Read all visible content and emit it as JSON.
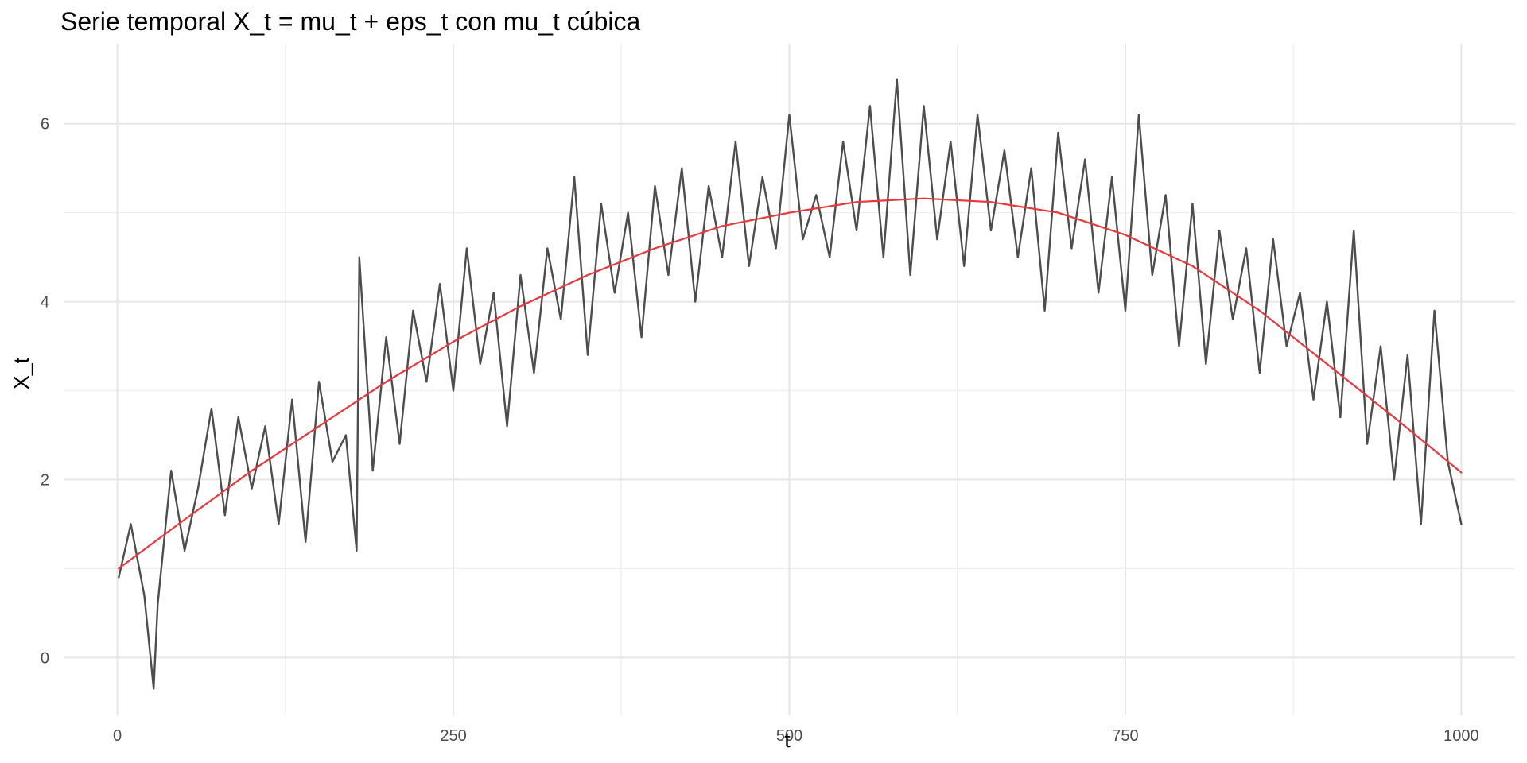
{
  "chart_data": {
    "type": "line",
    "title": "Serie temporal X_t = mu_t + eps_t con mu_t cúbica",
    "xlabel": "t",
    "ylabel": "X_t",
    "xlim": [
      -40,
      1040
    ],
    "ylim": [
      -0.65,
      6.9
    ],
    "x_ticks": [
      0,
      250,
      500,
      750,
      1000
    ],
    "x_tick_labels": [
      "0",
      "250",
      "500",
      "750",
      "1000"
    ],
    "y_ticks": [
      0,
      2,
      4,
      6
    ],
    "y_tick_labels": [
      "0",
      "2",
      "4",
      "6"
    ],
    "grid": true,
    "legend": "none",
    "colors": {
      "observed": "#4d4d4d",
      "trend": "#e8383d",
      "grid": "#e6e6e6"
    },
    "series": [
      {
        "role": "observed",
        "description": "observed series X_t, t = 1..1000 (sampled every 10 steps)",
        "x": [
          1,
          10,
          20,
          27,
          30,
          40,
          50,
          60,
          70,
          80,
          90,
          100,
          110,
          120,
          130,
          140,
          150,
          160,
          170,
          178,
          180,
          190,
          200,
          210,
          220,
          230,
          240,
          250,
          260,
          270,
          280,
          290,
          300,
          310,
          320,
          330,
          340,
          350,
          360,
          370,
          380,
          390,
          400,
          410,
          420,
          430,
          440,
          450,
          460,
          470,
          480,
          490,
          500,
          510,
          520,
          530,
          540,
          550,
          560,
          570,
          580,
          590,
          600,
          610,
          620,
          630,
          640,
          650,
          660,
          670,
          680,
          690,
          700,
          710,
          720,
          730,
          740,
          750,
          760,
          770,
          780,
          790,
          800,
          810,
          820,
          830,
          840,
          850,
          860,
          870,
          880,
          890,
          900,
          910,
          920,
          930,
          940,
          950,
          960,
          970,
          980,
          990,
          1000
        ],
        "y": [
          0.9,
          1.5,
          0.7,
          -0.35,
          0.6,
          2.1,
          1.2,
          1.9,
          2.8,
          1.6,
          2.7,
          1.9,
          2.6,
          1.5,
          2.9,
          1.3,
          3.1,
          2.2,
          2.5,
          1.2,
          4.5,
          2.1,
          3.6,
          2.4,
          3.9,
          3.1,
          4.2,
          3.0,
          4.6,
          3.3,
          4.1,
          2.6,
          4.3,
          3.2,
          4.6,
          3.8,
          5.4,
          3.4,
          5.1,
          4.1,
          5.0,
          3.6,
          5.3,
          4.3,
          5.5,
          4.0,
          5.3,
          4.5,
          5.8,
          4.4,
          5.4,
          4.6,
          6.1,
          4.7,
          5.2,
          4.5,
          5.8,
          4.8,
          6.2,
          4.5,
          6.5,
          4.3,
          6.2,
          4.7,
          5.8,
          4.4,
          6.1,
          4.8,
          5.7,
          4.5,
          5.5,
          3.9,
          5.9,
          4.6,
          5.6,
          4.1,
          5.4,
          3.9,
          6.1,
          4.3,
          5.2,
          3.5,
          5.1,
          3.3,
          4.8,
          3.8,
          4.6,
          3.2,
          4.7,
          3.5,
          4.1,
          2.9,
          4.0,
          2.7,
          4.8,
          2.4,
          3.5,
          2.0,
          3.4,
          1.5,
          3.9,
          2.2,
          1.5
        ]
      },
      {
        "role": "trend",
        "description": "cubic trend mu_t",
        "x": [
          1,
          50,
          100,
          150,
          200,
          250,
          300,
          350,
          400,
          450,
          500,
          550,
          600,
          650,
          700,
          750,
          800,
          850,
          900,
          950,
          1000
        ],
        "y": [
          1.0,
          1.55,
          2.1,
          2.6,
          3.1,
          3.55,
          3.95,
          4.3,
          4.6,
          4.85,
          5.0,
          5.12,
          5.16,
          5.12,
          5.0,
          4.75,
          4.4,
          3.9,
          3.3,
          2.7,
          2.08
        ]
      }
    ]
  }
}
